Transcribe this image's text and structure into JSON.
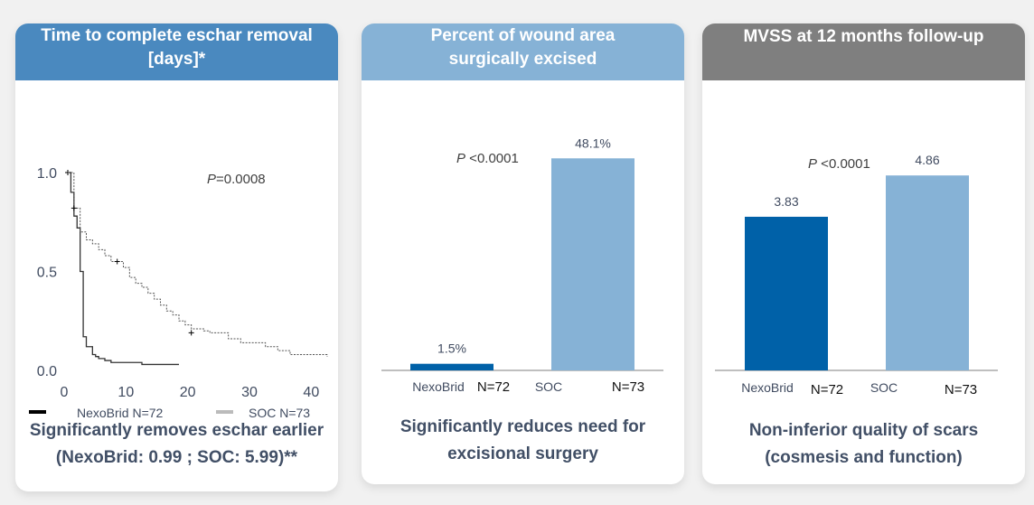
{
  "colors": {
    "nexobrid": "#0061a8",
    "soc": "#86b2d6",
    "header_blue": "#4a89bf",
    "header_lightblue": "#86b2d6",
    "header_gray": "#7f7f7f",
    "caption_text": "#414f66"
  },
  "panels": [
    {
      "title_line1": "Time to complete eschar removal",
      "title_line2": "[days]*",
      "caption_line1": "Significantly removes eschar earlier",
      "caption_line2": "(NexoBrid: 0.99 ; SOC: 5.99)**"
    },
    {
      "title_line1": "Percent of wound area",
      "title_line2": "surgically excised",
      "caption_line1": "Significantly reduces need for",
      "caption_line2": "excisional surgery"
    },
    {
      "title_line1": "MVSS at 12 months follow-up",
      "title_line2": "",
      "caption_line1": "Non-inferior quality of scars",
      "caption_line2": "(cosmesis and function)"
    }
  ],
  "chart_data": [
    {
      "type": "line",
      "title": "Time to complete eschar removal [days]*",
      "xlabel": "",
      "ylabel": "",
      "xlim": [
        0,
        42
      ],
      "ylim": [
        0,
        1.0
      ],
      "x_ticks": [
        "0",
        "10",
        "20",
        "30",
        "40"
      ],
      "y_ticks": [
        "1.0",
        "0.5",
        "0.0"
      ],
      "annotation": {
        "p_label": "P",
        "p_value": "=0.0008"
      },
      "legend": [
        {
          "name": "NexoBrid N=72",
          "color": "#000000"
        },
        {
          "name": "SOC N=73",
          "color": "#bbbbbb"
        }
      ],
      "legend_position": "bottom",
      "series": [
        {
          "name": "NexoBrid N=72",
          "style": "solid",
          "x": [
            0,
            0.5,
            1,
            1.5,
            2,
            2.5,
            3,
            3.5,
            4,
            4.5,
            5,
            6,
            7,
            9,
            12,
            18
          ],
          "y": [
            1.0,
            0.9,
            0.78,
            0.72,
            0.5,
            0.17,
            0.12,
            0.12,
            0.08,
            0.07,
            0.06,
            0.05,
            0.04,
            0.04,
            0.03,
            0.03
          ],
          "censored": [
            [
              0,
              1.0
            ]
          ]
        },
        {
          "name": "SOC N=73",
          "style": "dotted",
          "x": [
            0,
            1,
            2,
            3,
            4,
            5,
            6,
            7,
            8,
            9,
            10,
            11,
            12,
            13,
            14,
            15,
            16,
            17,
            18,
            19,
            20,
            22,
            23,
            25,
            26,
            28,
            31,
            32,
            34,
            36,
            42
          ],
          "y": [
            1.0,
            0.82,
            0.7,
            0.66,
            0.64,
            0.61,
            0.58,
            0.55,
            0.55,
            0.52,
            0.47,
            0.44,
            0.42,
            0.39,
            0.36,
            0.33,
            0.3,
            0.28,
            0.25,
            0.23,
            0.21,
            0.2,
            0.19,
            0.19,
            0.16,
            0.14,
            0.14,
            0.12,
            0.1,
            0.08,
            0.07
          ],
          "censored": [
            [
              1,
              0.82
            ],
            [
              8,
              0.55
            ],
            [
              20,
              0.19
            ]
          ]
        }
      ]
    },
    {
      "type": "bar",
      "title": "Percent of wound area surgically excised",
      "categories": [
        "NexoBrid",
        "SOC"
      ],
      "n_labels": [
        "N=72",
        "N=73"
      ],
      "values": [
        1.5,
        48.1
      ],
      "value_labels": [
        "1.5%",
        "48.1%"
      ],
      "colors": [
        "#0061a8",
        "#86b2d6"
      ],
      "annotation": {
        "p_label": "P",
        "p_value": " <0.0001"
      },
      "ylim": [
        0,
        50
      ]
    },
    {
      "type": "bar",
      "title": "MVSS at 12 months follow-up",
      "categories": [
        "NexoBrid",
        "SOC"
      ],
      "n_labels": [
        "N=72",
        "N=73"
      ],
      "values": [
        3.83,
        4.86
      ],
      "value_labels": [
        "3.83",
        "4.86"
      ],
      "colors": [
        "#0061a8",
        "#86b2d6"
      ],
      "annotation": {
        "p_label": "P",
        "p_value": " <0.0001"
      },
      "ylim": [
        0,
        5
      ]
    }
  ]
}
